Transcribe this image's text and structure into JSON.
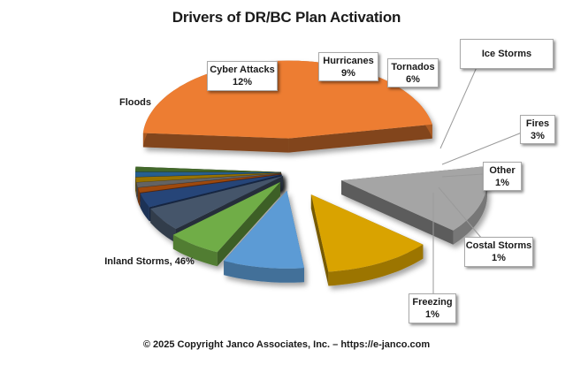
{
  "chart_data": {
    "type": "pie",
    "title": "Drivers of DR/BC Plan Activation",
    "footer": "© 2025 Copyright Janco Associates, Inc. – https://e-janco.com",
    "slices": [
      {
        "key": "inland",
        "name": "Inland Storms",
        "value": 46,
        "color": "#ED7D31",
        "label": "Inland Storms, 46%"
      },
      {
        "key": "floods",
        "name": "Floods",
        "value": 14,
        "color": "#A5A5A5",
        "label": "Floods"
      },
      {
        "key": "cyber",
        "name": "Cyber Attacks",
        "value": 12,
        "color": "#D9A300",
        "label": "Cyber Attacks",
        "pct": "12%"
      },
      {
        "key": "hurricanes",
        "name": "Hurricanes",
        "value": 9,
        "color": "#5B9BD5",
        "label": "Hurricanes",
        "pct": "9%"
      },
      {
        "key": "tornados",
        "name": "Tornados",
        "value": 6,
        "color": "#70AD47",
        "label": "Tornados",
        "pct": "6%"
      },
      {
        "key": "icestorms",
        "name": "Ice Storms",
        "value": 5,
        "color": "#44546A",
        "label": "Ice Storms"
      },
      {
        "key": "fires",
        "name": "Fires",
        "value": 3,
        "color": "#264478",
        "label": "Fires",
        "pct": "3%"
      },
      {
        "key": "other",
        "name": "Other",
        "value": 1,
        "color": "#9E480E",
        "label": "Other",
        "pct": "1%"
      },
      {
        "key": "costal",
        "name": "Costal Storms",
        "value": 1,
        "color": "#636363",
        "label": "Costal Storms",
        "pct": "1%"
      },
      {
        "key": "freezing",
        "name": "Freezing",
        "value": 1,
        "color": "#997300",
        "label": "Freezing",
        "pct": "1%"
      },
      {
        "key": "misc1",
        "name": "",
        "value": 1,
        "color": "#255E91",
        "label": ""
      },
      {
        "key": "misc2",
        "name": "",
        "value": 1,
        "color": "#43682B",
        "label": ""
      }
    ]
  }
}
